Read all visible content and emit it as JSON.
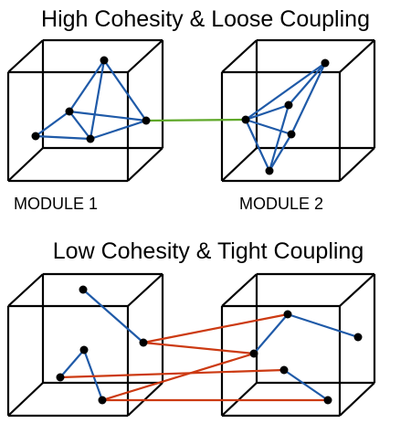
{
  "top": {
    "title": "High Cohesity & Loose Coupling",
    "module1_label": "MODULE 1",
    "module2_label": "MODULE 2"
  },
  "bottom": {
    "title": "Low Cohesity & Tight Coupling"
  },
  "colors": {
    "intra_module_link": "#1f5aa8",
    "loose_coupling_link": "#5fa829",
    "tight_coupling_link": "#cc3a12",
    "node": "#000000",
    "cube_edge": "#000000"
  }
}
